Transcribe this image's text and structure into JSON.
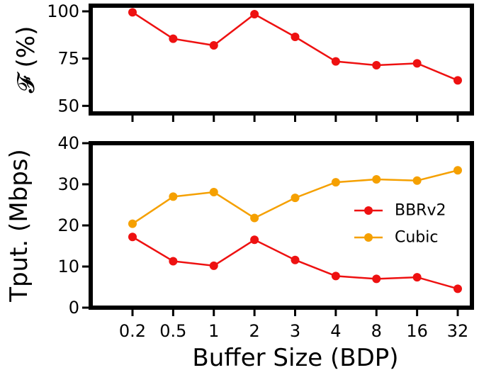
{
  "chart_data": [
    {
      "type": "line",
      "ylabel": "𝓕 (%)",
      "yticks": [
        50,
        75,
        100
      ],
      "ylim": [
        46,
        103
      ],
      "categories": [
        "0.2",
        "0.5",
        "1",
        "2",
        "3",
        "4",
        "8",
        "16",
        "32"
      ],
      "series": [
        {
          "values": [
            99.5,
            85.5,
            82,
            98.5,
            86.5,
            73.5,
            71.5,
            72.5,
            63.5
          ],
          "color": "#ee1111"
        }
      ]
    },
    {
      "type": "line",
      "xlabel": "Buffer Size (BDP)",
      "ylabel": "Tput. (Mbps)",
      "yticks": [
        0,
        10,
        20,
        30,
        40
      ],
      "ylim": [
        0,
        40
      ],
      "categories": [
        "0.2",
        "0.5",
        "1",
        "2",
        "3",
        "4",
        "8",
        "16",
        "32"
      ],
      "legend_position": "center-right",
      "series": [
        {
          "name": "BBRv2",
          "values": [
            17.2,
            11.3,
            10.2,
            16.5,
            11.6,
            7.7,
            7.0,
            7.4,
            4.6
          ],
          "color": "#ee1111"
        },
        {
          "name": "Cubic",
          "values": [
            20.4,
            27.0,
            28.1,
            21.8,
            26.7,
            30.5,
            31.2,
            30.9,
            33.4
          ],
          "color": "#f5a000"
        }
      ]
    }
  ]
}
